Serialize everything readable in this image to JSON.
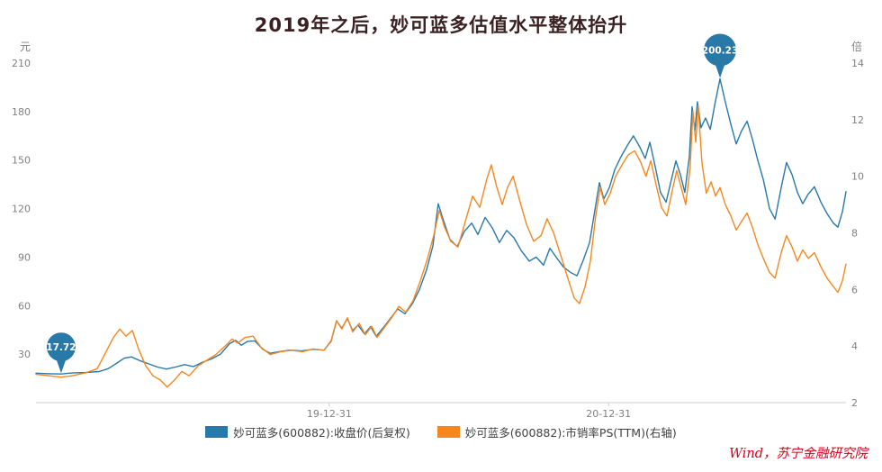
{
  "title": "2019年之后，妙可蓝多估值水平整体抬升",
  "watermark": "Wind，苏宁金融研究院",
  "colors": {
    "title": "#3b2222",
    "watermark": "#d9001b",
    "axis_text": "#808080",
    "close_line": "#2878a8",
    "ps_line": "#f6871f"
  },
  "legend": {
    "items": [
      {
        "label": "妙可蓝多(600882):收盘价(后复权)",
        "color": "#2878a8"
      },
      {
        "label": "妙可蓝多(600882):市销率PS(TTM)(右轴)",
        "color": "#f6871f"
      }
    ]
  },
  "chart_data": {
    "type": "line",
    "title": "2019年之后，妙可蓝多估值水平整体抬升",
    "grid": false,
    "legend_position": "bottom",
    "x_axis": {
      "min": 2018.95,
      "max": 2021.85,
      "ticks": [
        {
          "value": 2020.0,
          "label": "19-12-31"
        },
        {
          "value": 2021.0,
          "label": "20-12-31"
        }
      ]
    },
    "left_axis": {
      "unit": "元",
      "min": 0,
      "max": 210,
      "ticks": [
        30,
        60,
        90,
        120,
        150,
        180,
        210
      ]
    },
    "right_axis": {
      "unit": "倍",
      "min": 2,
      "max": 14,
      "ticks": [
        2,
        4,
        6,
        8,
        10,
        12,
        14
      ]
    },
    "series": [
      {
        "name": "妙可蓝多(600882):收盘价(后复权)",
        "axis": "left",
        "color": "#2878a8",
        "points": [
          [
            2018.95,
            18.2
          ],
          [
            2018.998,
            17.9
          ],
          [
            2019.04,
            17.72
          ],
          [
            2019.079,
            18.3
          ],
          [
            2019.127,
            18.6
          ],
          [
            2019.176,
            19.2
          ],
          [
            2019.208,
            21
          ],
          [
            2019.24,
            24.5
          ],
          [
            2019.266,
            27.5
          ],
          [
            2019.292,
            28.3
          ],
          [
            2019.321,
            26
          ],
          [
            2019.353,
            24
          ],
          [
            2019.385,
            22
          ],
          [
            2019.417,
            20.8
          ],
          [
            2019.449,
            22
          ],
          [
            2019.482,
            23.5
          ],
          [
            2019.514,
            22.3
          ],
          [
            2019.546,
            25
          ],
          [
            2019.578,
            27
          ],
          [
            2019.611,
            30
          ],
          [
            2019.643,
            36.5
          ],
          [
            2019.665,
            38.5
          ],
          [
            2019.685,
            35.5
          ],
          [
            2019.707,
            37.8
          ],
          [
            2019.733,
            38.2
          ],
          [
            2019.762,
            33
          ],
          [
            2019.788,
            30.5
          ],
          [
            2019.82,
            31.5
          ],
          [
            2019.859,
            32.5
          ],
          [
            2019.901,
            32
          ],
          [
            2019.942,
            33
          ],
          [
            2019.981,
            32.5
          ],
          [
            2020.007,
            38
          ],
          [
            2020.026,
            50.5
          ],
          [
            2020.045,
            46
          ],
          [
            2020.065,
            52
          ],
          [
            2020.084,
            44.5
          ],
          [
            2020.103,
            48
          ],
          [
            2020.126,
            42.5
          ],
          [
            2020.148,
            47
          ],
          [
            2020.168,
            41
          ],
          [
            2020.194,
            46.5
          ],
          [
            2020.219,
            52
          ],
          [
            2020.245,
            58
          ],
          [
            2020.271,
            55
          ],
          [
            2020.297,
            61
          ],
          [
            2020.323,
            70
          ],
          [
            2020.348,
            82
          ],
          [
            2020.371,
            97
          ],
          [
            2020.39,
            123
          ],
          [
            2020.41,
            112
          ],
          [
            2020.432,
            101
          ],
          [
            2020.458,
            96.5
          ],
          [
            2020.484,
            106
          ],
          [
            2020.51,
            111
          ],
          [
            2020.532,
            104
          ],
          [
            2020.558,
            114.5
          ],
          [
            2020.584,
            108
          ],
          [
            2020.609,
            99
          ],
          [
            2020.635,
            106.5
          ],
          [
            2020.661,
            102
          ],
          [
            2020.687,
            94
          ],
          [
            2020.716,
            87.5
          ],
          [
            2020.741,
            90
          ],
          [
            2020.767,
            85
          ],
          [
            2020.79,
            95.5
          ],
          [
            2020.812,
            90
          ],
          [
            2020.838,
            84
          ],
          [
            2020.864,
            80.5
          ],
          [
            2020.887,
            78.5
          ],
          [
            2020.909,
            88
          ],
          [
            2020.932,
            99
          ],
          [
            2020.951,
            119
          ],
          [
            2020.967,
            136
          ],
          [
            2020.983,
            126
          ],
          [
            2021.003,
            133
          ],
          [
            2021.022,
            144
          ],
          [
            2021.044,
            152
          ],
          [
            2021.067,
            159
          ],
          [
            2021.089,
            165
          ],
          [
            2021.112,
            158
          ],
          [
            2021.131,
            151
          ],
          [
            2021.148,
            161
          ],
          [
            2021.167,
            146
          ],
          [
            2021.186,
            130
          ],
          [
            2021.206,
            124
          ],
          [
            2021.225,
            138
          ],
          [
            2021.241,
            149.5
          ],
          [
            2021.257,
            141
          ],
          [
            2021.273,
            130
          ],
          [
            2021.289,
            152
          ],
          [
            2021.299,
            183
          ],
          [
            2021.309,
            168
          ],
          [
            2021.318,
            186
          ],
          [
            2021.331,
            170
          ],
          [
            2021.347,
            176
          ],
          [
            2021.364,
            169
          ],
          [
            2021.38,
            184
          ],
          [
            2021.399,
            200.23
          ],
          [
            2021.418,
            186
          ],
          [
            2021.438,
            172
          ],
          [
            2021.457,
            160
          ],
          [
            2021.476,
            168
          ],
          [
            2021.496,
            174
          ],
          [
            2021.515,
            163
          ],
          [
            2021.534,
            150
          ],
          [
            2021.554,
            138
          ],
          [
            2021.576,
            120
          ],
          [
            2021.596,
            113.5
          ],
          [
            2021.618,
            133
          ],
          [
            2021.637,
            148.5
          ],
          [
            2021.657,
            141
          ],
          [
            2021.676,
            130
          ],
          [
            2021.695,
            123
          ],
          [
            2021.715,
            129
          ],
          [
            2021.737,
            133.5
          ],
          [
            2021.76,
            124
          ],
          [
            2021.782,
            117
          ],
          [
            2021.805,
            111
          ],
          [
            2021.821,
            108.5
          ],
          [
            2021.837,
            118
          ],
          [
            2021.85,
            130.5
          ]
        ]
      },
      {
        "name": "妙可蓝多(600882):市销率PS(TTM)(右轴)",
        "axis": "right",
        "color": "#f6871f",
        "points": [
          [
            2018.95,
            3
          ],
          [
            2018.998,
            2.95
          ],
          [
            2019.04,
            2.9
          ],
          [
            2019.079,
            2.95
          ],
          [
            2019.127,
            3.05
          ],
          [
            2019.169,
            3.2
          ],
          [
            2019.201,
            3.8
          ],
          [
            2019.227,
            4.3
          ],
          [
            2019.25,
            4.6
          ],
          [
            2019.272,
            4.35
          ],
          [
            2019.295,
            4.55
          ],
          [
            2019.317,
            3.9
          ],
          [
            2019.343,
            3.3
          ],
          [
            2019.369,
            2.95
          ],
          [
            2019.395,
            2.8
          ],
          [
            2019.42,
            2.55
          ],
          [
            2019.446,
            2.8
          ],
          [
            2019.472,
            3.1
          ],
          [
            2019.498,
            2.95
          ],
          [
            2019.53,
            3.3
          ],
          [
            2019.562,
            3.5
          ],
          [
            2019.594,
            3.7
          ],
          [
            2019.627,
            4
          ],
          [
            2019.652,
            4.25
          ],
          [
            2019.672,
            4.1
          ],
          [
            2019.698,
            4.3
          ],
          [
            2019.727,
            4.35
          ],
          [
            2019.756,
            3.95
          ],
          [
            2019.788,
            3.7
          ],
          [
            2019.826,
            3.8
          ],
          [
            2019.865,
            3.85
          ],
          [
            2019.904,
            3.8
          ],
          [
            2019.942,
            3.9
          ],
          [
            2019.981,
            3.85
          ],
          [
            2020.007,
            4.2
          ],
          [
            2020.026,
            4.9
          ],
          [
            2020.045,
            4.6
          ],
          [
            2020.065,
            5
          ],
          [
            2020.084,
            4.5
          ],
          [
            2020.107,
            4.8
          ],
          [
            2020.129,
            4.4
          ],
          [
            2020.152,
            4.7
          ],
          [
            2020.171,
            4.3
          ],
          [
            2020.197,
            4.65
          ],
          [
            2020.223,
            5
          ],
          [
            2020.249,
            5.4
          ],
          [
            2020.274,
            5.2
          ],
          [
            2020.3,
            5.6
          ],
          [
            2020.326,
            6.3
          ],
          [
            2020.352,
            7.1
          ],
          [
            2020.374,
            7.9
          ],
          [
            2020.394,
            8.8
          ],
          [
            2020.413,
            8.2
          ],
          [
            2020.435,
            7.7
          ],
          [
            2020.461,
            7.5
          ],
          [
            2020.487,
            8.4
          ],
          [
            2020.513,
            9.3
          ],
          [
            2020.539,
            8.9
          ],
          [
            2020.564,
            9.9
          ],
          [
            2020.58,
            10.4
          ],
          [
            2020.6,
            9.6
          ],
          [
            2020.619,
            9
          ],
          [
            2020.638,
            9.6
          ],
          [
            2020.658,
            10
          ],
          [
            2020.68,
            9.2
          ],
          [
            2020.706,
            8.3
          ],
          [
            2020.732,
            7.7
          ],
          [
            2020.758,
            7.9
          ],
          [
            2020.78,
            8.5
          ],
          [
            2020.803,
            8
          ],
          [
            2020.829,
            7.2
          ],
          [
            2020.854,
            6.4
          ],
          [
            2020.877,
            5.7
          ],
          [
            2020.896,
            5.5
          ],
          [
            2020.916,
            6.1
          ],
          [
            2020.935,
            7
          ],
          [
            2020.954,
            8.6
          ],
          [
            2020.97,
            9.6
          ],
          [
            2020.986,
            9
          ],
          [
            2021.006,
            9.4
          ],
          [
            2021.025,
            10
          ],
          [
            2021.048,
            10.4
          ],
          [
            2021.07,
            10.75
          ],
          [
            2021.093,
            10.9
          ],
          [
            2021.115,
            10.5
          ],
          [
            2021.134,
            10
          ],
          [
            2021.151,
            10.55
          ],
          [
            2021.17,
            9.7
          ],
          [
            2021.189,
            8.9
          ],
          [
            2021.209,
            8.6
          ],
          [
            2021.228,
            9.5
          ],
          [
            2021.244,
            10.2
          ],
          [
            2021.26,
            9.6
          ],
          [
            2021.276,
            9
          ],
          [
            2021.292,
            10.3
          ],
          [
            2021.302,
            12.3
          ],
          [
            2021.312,
            11.2
          ],
          [
            2021.321,
            12.5
          ],
          [
            2021.334,
            10.5
          ],
          [
            2021.35,
            9.4
          ],
          [
            2021.367,
            9.8
          ],
          [
            2021.383,
            9.3
          ],
          [
            2021.399,
            9.6
          ],
          [
            2021.418,
            9
          ],
          [
            2021.438,
            8.6
          ],
          [
            2021.457,
            8.1
          ],
          [
            2021.476,
            8.4
          ],
          [
            2021.496,
            8.7
          ],
          [
            2021.515,
            8.2
          ],
          [
            2021.534,
            7.6
          ],
          [
            2021.554,
            7.1
          ],
          [
            2021.576,
            6.6
          ],
          [
            2021.596,
            6.4
          ],
          [
            2021.618,
            7.3
          ],
          [
            2021.637,
            7.9
          ],
          [
            2021.657,
            7.5
          ],
          [
            2021.676,
            7
          ],
          [
            2021.695,
            7.4
          ],
          [
            2021.715,
            7.1
          ],
          [
            2021.737,
            7.3
          ],
          [
            2021.76,
            6.8
          ],
          [
            2021.782,
            6.4
          ],
          [
            2021.805,
            6.1
          ],
          [
            2021.821,
            5.9
          ],
          [
            2021.837,
            6.3
          ],
          [
            2021.85,
            6.9
          ]
        ]
      }
    ],
    "markers": [
      {
        "series": 0,
        "x": 2019.04,
        "value": 17.72,
        "label": "17.72"
      },
      {
        "series": 0,
        "x": 2021.399,
        "value": 200.23,
        "label": "200.23"
      }
    ]
  }
}
